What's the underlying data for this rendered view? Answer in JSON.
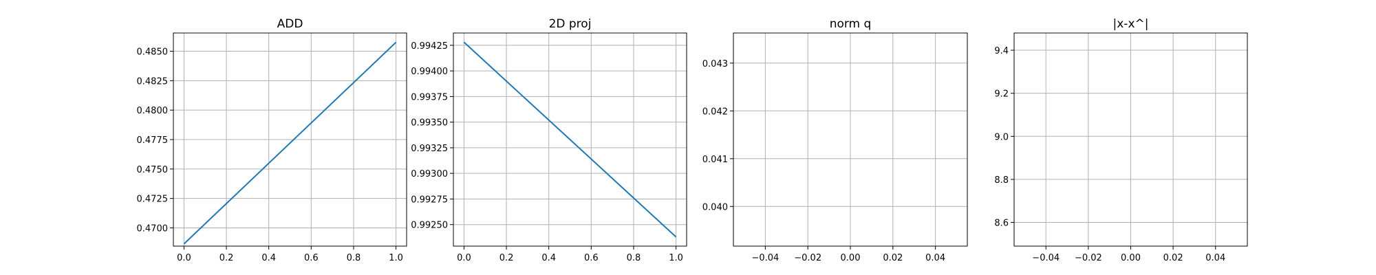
{
  "chart_data": [
    {
      "type": "line",
      "title": "ADD",
      "xlabel": "",
      "ylabel": "",
      "xlim": [
        -0.05,
        1.05
      ],
      "ylim": [
        0.46845,
        0.48655
      ],
      "xticks": [
        0.0,
        0.2,
        0.4,
        0.6,
        0.8,
        1.0
      ],
      "xtick_labels": [
        "0.0",
        "0.2",
        "0.4",
        "0.6",
        "0.8",
        "1.0"
      ],
      "yticks": [
        0.47,
        0.4725,
        0.475,
        0.4775,
        0.48,
        0.4825,
        0.485
      ],
      "ytick_labels": [
        "0.4700",
        "0.4725",
        "0.4750",
        "0.4775",
        "0.4800",
        "0.4825",
        "0.4850"
      ],
      "grid": true,
      "series": [
        {
          "x": [
            0,
            1
          ],
          "y": [
            0.46864,
            0.48576
          ],
          "color": "#1f77b4"
        }
      ]
    },
    {
      "type": "line",
      "title": "2D proj",
      "xlabel": "",
      "ylabel": "",
      "xlim": [
        -0.05,
        1.05
      ],
      "ylim": [
        0.99229,
        0.99437
      ],
      "xticks": [
        0.0,
        0.2,
        0.4,
        0.6,
        0.8,
        1.0
      ],
      "xtick_labels": [
        "0.0",
        "0.2",
        "0.4",
        "0.6",
        "0.8",
        "1.0"
      ],
      "yticks": [
        0.9925,
        0.99275,
        0.993,
        0.99325,
        0.9935,
        0.99375,
        0.994,
        0.99425
      ],
      "ytick_labels": [
        "0.99250",
        "0.99275",
        "0.99300",
        "0.99325",
        "0.99350",
        "0.99375",
        "0.99400",
        "0.99425"
      ],
      "grid": true,
      "series": [
        {
          "x": [
            0,
            1
          ],
          "y": [
            0.99428,
            0.99238
          ],
          "color": "#1f77b4"
        }
      ]
    },
    {
      "type": "line",
      "title": "norm q",
      "xlabel": "",
      "ylabel": "",
      "xlim": [
        -0.055,
        0.055
      ],
      "ylim": [
        0.03917,
        0.04363
      ],
      "xticks": [
        -0.04,
        -0.02,
        0.0,
        0.02,
        0.04
      ],
      "xtick_labels": [
        "−0.04",
        "−0.02",
        "0.00",
        "0.02",
        "0.04"
      ],
      "yticks": [
        0.04,
        0.041,
        0.042,
        0.043
      ],
      "ytick_labels": [
        "0.040",
        "0.041",
        "0.042",
        "0.043"
      ],
      "grid": true,
      "series": []
    },
    {
      "type": "line",
      "title": "|x-x^|",
      "xlabel": "",
      "ylabel": "",
      "xlim": [
        -0.055,
        0.055
      ],
      "ylim": [
        8.49,
        9.48
      ],
      "xticks": [
        -0.04,
        -0.02,
        0.0,
        0.02,
        0.04
      ],
      "xtick_labels": [
        "−0.04",
        "−0.02",
        "0.00",
        "0.02",
        "0.04"
      ],
      "yticks": [
        8.6,
        8.8,
        9.0,
        9.2,
        9.4
      ],
      "ytick_labels": [
        "8.6",
        "8.8",
        "9.0",
        "9.2",
        "9.4"
      ],
      "grid": true,
      "series": []
    }
  ]
}
